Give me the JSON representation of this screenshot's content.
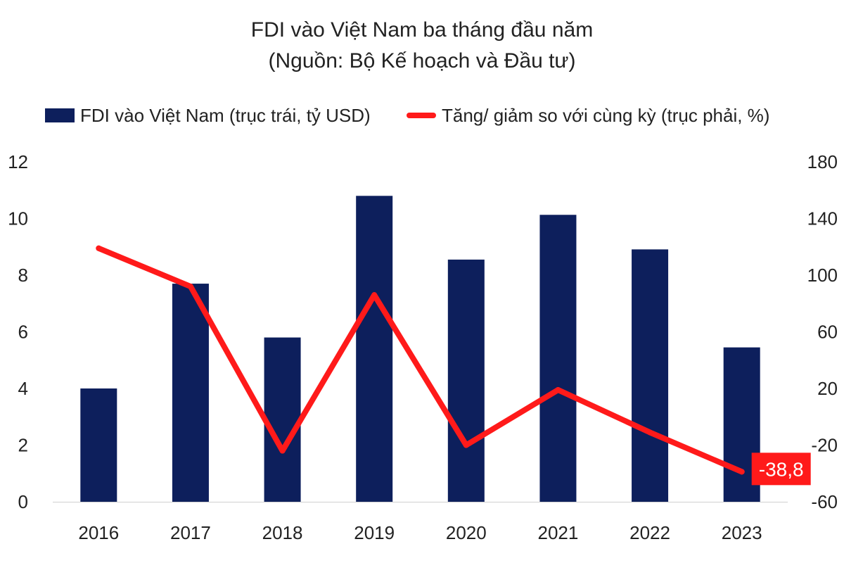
{
  "chart_data": {
    "type": "bar",
    "title": "FDI vào Việt Nam ba tháng đầu năm",
    "subtitle": "(Nguồn: Bộ Kế hoạch và Đầu tư)",
    "categories": [
      "2016",
      "2017",
      "2018",
      "2019",
      "2020",
      "2021",
      "2022",
      "2023"
    ],
    "series": [
      {
        "name": "FDI vào Việt Nam (trục trái, tỷ USD)",
        "type": "bar",
        "axis": "left",
        "values": [
          4.0,
          7.7,
          5.8,
          10.8,
          8.55,
          10.13,
          8.91,
          5.45
        ]
      },
      {
        "name": "Tăng/ giảm so với cùng kỳ (trục phải, %)",
        "type": "line",
        "axis": "right",
        "values": [
          119,
          92,
          -24,
          86,
          -20,
          19,
          -11,
          -38.8
        ]
      }
    ],
    "y_left": {
      "min": 0,
      "max": 12,
      "ticks": [
        0,
        2,
        4,
        6,
        8,
        10,
        12
      ]
    },
    "y_right": {
      "min": -60,
      "max": 180,
      "ticks": [
        -60,
        -20,
        20,
        60,
        100,
        140,
        180
      ]
    },
    "annotation": {
      "category": "2023",
      "series": 1,
      "text": "-38,8"
    },
    "colors": {
      "bar": "#0d1f5c",
      "line": "#ff1a1a",
      "annotation_bg": "#ff1a1a",
      "annotation_text": "#ffffff"
    },
    "grid": false,
    "legend_position": "top"
  }
}
